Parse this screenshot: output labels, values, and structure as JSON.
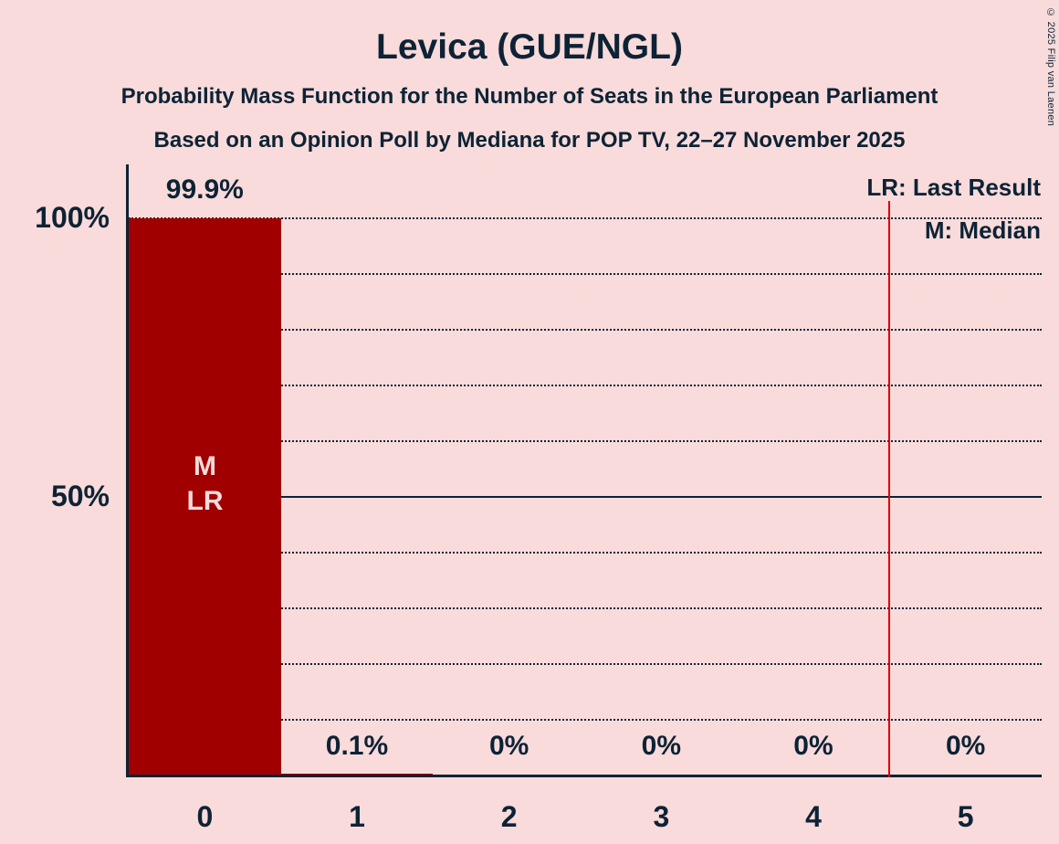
{
  "copyright": "© 2025 Filip van Laenen",
  "chart_data": {
    "type": "bar",
    "title": "Levica (GUE/NGL)",
    "subtitle1": "Probability Mass Function for the Number of Seats in the European Parliament",
    "subtitle2": "Based on an Opinion Poll by Mediana for POP TV, 22–27 November 2025",
    "categories": [
      "0",
      "1",
      "2",
      "3",
      "4",
      "5"
    ],
    "values": [
      99.9,
      0.1,
      0,
      0,
      0,
      0
    ],
    "value_labels": [
      "99.9%",
      "0.1%",
      "0%",
      "0%",
      "0%",
      "0%"
    ],
    "ylim": [
      0,
      100
    ],
    "y_ticks": [
      {
        "value": 100,
        "label": "100%"
      },
      {
        "value": 50,
        "label": "50%"
      }
    ],
    "grid": {
      "step_percent": 10,
      "solid_at_percent": 50,
      "style": "dotted"
    },
    "legend_entries": [
      "LR: Last Result",
      "M: Median"
    ],
    "bar_annotation": {
      "seat": "0",
      "lines": [
        "M",
        "LR"
      ]
    },
    "vertical_line_x": 4.5,
    "colors": {
      "background": "#f9dbdb",
      "bar": "#a00000",
      "text": "#0d2335",
      "vertical_line": "#dd0000",
      "bar_label": "#f9dbdb"
    }
  }
}
